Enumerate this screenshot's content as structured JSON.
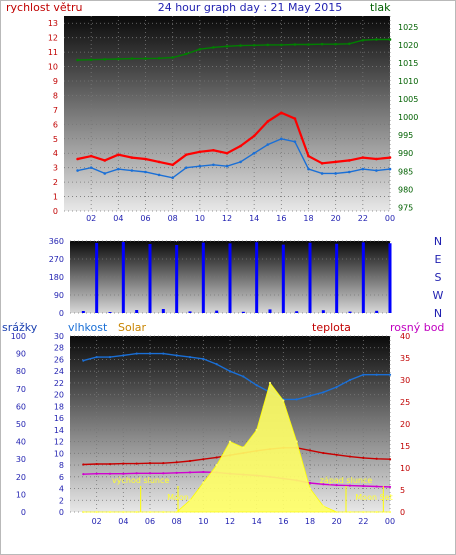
{
  "chart_data": [
    {
      "type": "line",
      "title": "24 hour graph day : 21 May 2015",
      "left_label": "rychlost větru",
      "right_label": "tlak",
      "x_ticks": [
        "02",
        "04",
        "06",
        "08",
        "10",
        "12",
        "14",
        "16",
        "18",
        "20",
        "22",
        "00"
      ],
      "left_ticks": [
        "0",
        "1",
        "2",
        "3",
        "4",
        "5",
        "6",
        "7",
        "8",
        "9",
        "10",
        "11",
        "12",
        "13"
      ],
      "right_ticks": [
        "975",
        "980",
        "985",
        "990",
        "995",
        "1000",
        "1005",
        "1010",
        "1015",
        "1020",
        "1025"
      ],
      "ylim_left": [
        0,
        13.5
      ],
      "ylim_right": [
        974,
        1028
      ],
      "hours": [
        1,
        2,
        3,
        4,
        5,
        6,
        7,
        8,
        9,
        10,
        11,
        12,
        13,
        14,
        15,
        16,
        17,
        18,
        19,
        20,
        21,
        22,
        23,
        24
      ],
      "series": [
        {
          "key": "gust",
          "color": "#ff0000",
          "values": [
            3.6,
            3.8,
            3.5,
            3.9,
            3.7,
            3.6,
            3.4,
            3.2,
            3.9,
            4.1,
            4.2,
            4.0,
            4.5,
            5.2,
            6.2,
            6.8,
            6.4,
            3.8,
            3.3,
            3.4,
            3.5,
            3.7,
            3.6,
            3.7
          ]
        },
        {
          "key": "average",
          "color": "#1a6fd6",
          "values": [
            2.8,
            3.0,
            2.6,
            2.9,
            2.8,
            2.7,
            2.5,
            2.3,
            3.0,
            3.1,
            3.2,
            3.1,
            3.4,
            4.0,
            4.6,
            5.0,
            4.8,
            2.9,
            2.6,
            2.6,
            2.7,
            2.9,
            2.8,
            2.9
          ]
        },
        {
          "key": "pressure",
          "color": "#008000",
          "values": [
            1015.8,
            1015.9,
            1016.0,
            1016.1,
            1016.2,
            1016.2,
            1016.3,
            1016.5,
            1017.5,
            1018.8,
            1019.3,
            1019.6,
            1019.8,
            1019.9,
            1020.0,
            1020.0,
            1020.1,
            1020.1,
            1020.2,
            1020.2,
            1020.3,
            1021.3,
            1021.5,
            1021.5
          ]
        }
      ]
    },
    {
      "type": "scatter",
      "title": "",
      "left_ticks": [
        "0",
        "90",
        "180",
        "270",
        "360"
      ],
      "right_labels": [
        "N",
        "W",
        "S",
        "E",
        "N"
      ],
      "ylim": [
        0,
        360
      ],
      "hours": [
        1,
        2,
        3,
        4,
        5,
        6,
        7,
        8,
        9,
        10,
        11,
        12,
        13,
        14,
        15,
        16,
        17,
        18,
        19,
        20,
        21,
        22,
        23,
        24
      ],
      "series": [
        {
          "key": "direction",
          "color": "#0000ff",
          "values": [
            10,
            350,
            5,
            355,
            15,
            345,
            20,
            340,
            8,
            352,
            12,
            348,
            6,
            354,
            18,
            342,
            9,
            351,
            14,
            346,
            7,
            353,
            11,
            349
          ]
        }
      ]
    },
    {
      "type": "area",
      "title": "",
      "legend": [
        "srážky",
        "vlhkost",
        "Solar",
        "teplota",
        "rosný bod"
      ],
      "far_left_ticks": [
        "0",
        "10",
        "20",
        "30",
        "40",
        "50",
        "60",
        "70",
        "80",
        "90",
        "100"
      ],
      "left_ticks": [
        "0",
        "2",
        "4",
        "6",
        "8",
        "10",
        "12",
        "14",
        "16",
        "18",
        "20",
        "22",
        "24",
        "26",
        "28",
        "30"
      ],
      "right_ticks": [
        "0",
        "5",
        "10",
        "15",
        "20",
        "25",
        "30",
        "35",
        "40"
      ],
      "ylim_left": [
        0,
        30
      ],
      "ylim_right": [
        0,
        40
      ],
      "hours": [
        1,
        2,
        3,
        4,
        5,
        6,
        7,
        8,
        9,
        10,
        11,
        12,
        13,
        14,
        15,
        16,
        17,
        18,
        19,
        20,
        21,
        22,
        23,
        24
      ],
      "series": [
        {
          "key": "humidity",
          "color": "#1a6fd6",
          "values": [
            86,
            88,
            88,
            89,
            90,
            90,
            90,
            89,
            88,
            87,
            84,
            80,
            77,
            72,
            68,
            64,
            64,
            66,
            68,
            71,
            75,
            78,
            78,
            78
          ]
        },
        {
          "key": "temperature",
          "color": "#c80000",
          "values": [
            10.8,
            10.9,
            10.9,
            11.0,
            11.0,
            11.1,
            11.1,
            11.3,
            11.6,
            12.0,
            12.4,
            12.9,
            13.4,
            13.9,
            14.3,
            14.6,
            14.6,
            14.0,
            13.4,
            13.0,
            12.6,
            12.3,
            12.1,
            12.0
          ]
        },
        {
          "key": "dewpoint",
          "color": "#d000d0",
          "values": [
            8.6,
            8.7,
            8.7,
            8.7,
            8.8,
            8.8,
            8.8,
            8.9,
            9.0,
            9.1,
            9.0,
            8.7,
            8.5,
            8.3,
            8.0,
            7.6,
            7.2,
            6.6,
            6.3,
            6.1,
            6.0,
            5.9,
            5.8,
            5.7
          ]
        },
        {
          "key": "solar",
          "color": "#ffff66",
          "values": [
            0,
            0,
            0,
            0,
            0,
            0,
            0,
            0,
            2,
            5,
            8,
            12,
            11,
            14,
            22,
            19,
            12,
            4,
            1,
            0,
            0,
            0,
            0,
            0
          ]
        }
      ],
      "annotations": [
        "východ slunce",
        "západ slunce",
        "Moon",
        "Moon Set"
      ]
    }
  ]
}
